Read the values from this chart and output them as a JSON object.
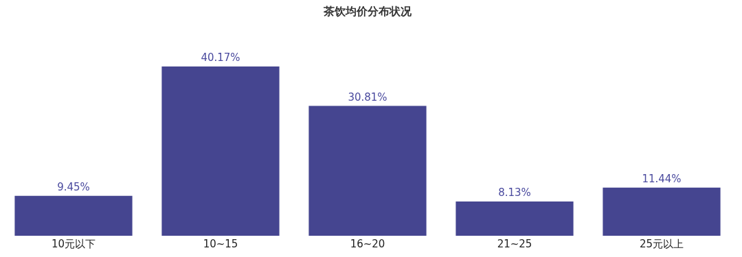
{
  "chart_data": {
    "type": "bar",
    "title": "茶饮均价分布状况",
    "categories": [
      "10元以下",
      "10~15",
      "16~20",
      "21~25",
      "25元以上"
    ],
    "values": [
      9.45,
      40.17,
      30.81,
      8.13,
      11.44
    ],
    "value_labels": [
      "9.45%",
      "40.17%",
      "30.81%",
      "8.13%",
      "11.44%"
    ],
    "color": "#454590"
  }
}
